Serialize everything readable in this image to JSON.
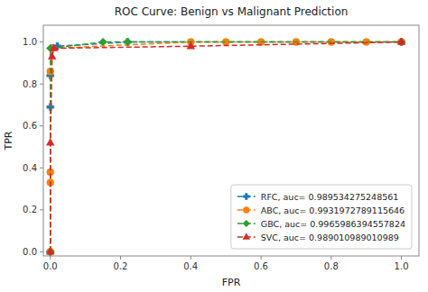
{
  "chart_data": {
    "type": "line",
    "title": "ROC Curve: Benign vs Malignant Prediction",
    "x_label": "FPR",
    "y_label": "TPR",
    "xlim": [
      -0.02,
      1.05
    ],
    "ylim": [
      -0.02,
      1.08
    ],
    "xticks": [
      {
        "value": 0.0,
        "label": "0.0"
      },
      0.2,
      0.4,
      0.6,
      0.8,
      {
        "value": 1.0,
        "label": "1.0"
      }
    ],
    "yticks": [
      {
        "value": 0.0,
        "label": "0.0"
      },
      0.2,
      0.4,
      0.6,
      0.8,
      {
        "value": 1.0,
        "label": "1.0"
      }
    ],
    "grid": false,
    "legend": "lower right",
    "series": [
      {
        "name": "RFC, auc= 0.989534275248561",
        "color": "#1f77b4",
        "marker": "plus",
        "line_style": "dashed",
        "x": [
          0.0,
          0.0,
          0.0,
          0.005,
          0.02,
          0.22,
          1.0
        ],
        "values": [
          0.0,
          0.69,
          0.84,
          0.97,
          0.98,
          1.0,
          1.0
        ]
      },
      {
        "name": "ABC, auc= 0.9931972789115646",
        "color": "#ff7f0e",
        "marker": "circle",
        "line_style": "dashed",
        "x": [
          0.0,
          0.0,
          0.0,
          0.0,
          0.005,
          0.4,
          0.5,
          0.6,
          0.7,
          0.8,
          0.9,
          1.0
        ],
        "values": [
          0.0,
          0.33,
          0.38,
          0.86,
          0.97,
          1.0,
          1.0,
          1.0,
          1.0,
          1.0,
          1.0,
          1.0
        ]
      },
      {
        "name": "GBC, auc= 0.9965986394557824",
        "color": "#2ca02c",
        "marker": "diamond",
        "line_style": "dashed",
        "x": [
          0.0,
          0.0,
          0.15,
          0.22,
          1.0
        ],
        "values": [
          0.0,
          0.97,
          1.0,
          1.0,
          1.0
        ]
      },
      {
        "name": "SVC, auc= 0.989010989010989",
        "color": "#d62728",
        "marker": "triangle",
        "line_style": "dashed",
        "x": [
          0.0,
          0.0,
          0.005,
          0.01,
          0.4,
          1.0
        ],
        "values": [
          0.0,
          0.52,
          0.93,
          0.97,
          0.98,
          1.0
        ]
      }
    ]
  }
}
